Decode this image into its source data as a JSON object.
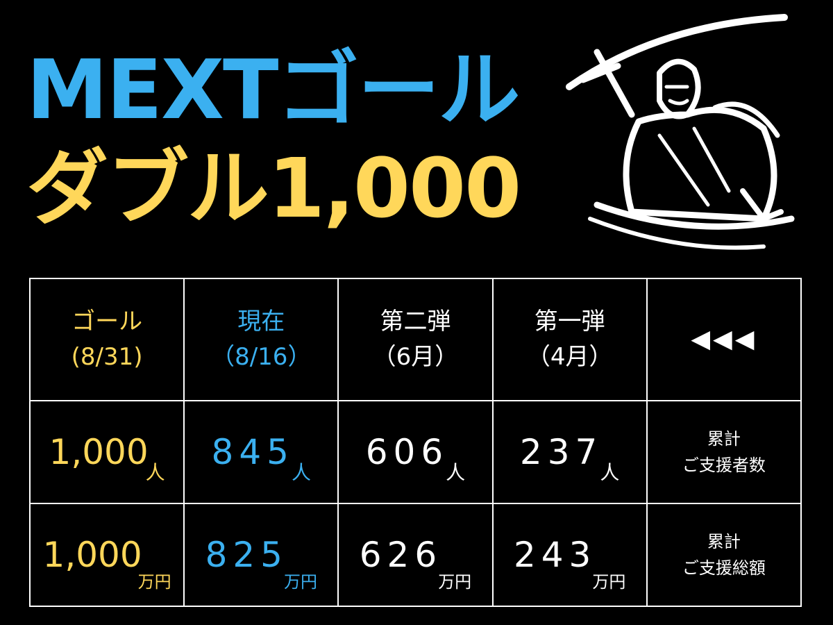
{
  "title": {
    "line1": "MEXTゴール",
    "line2": "ダブル1,000"
  },
  "colors": {
    "goal": "#FFD75A",
    "current": "#3BB0F0",
    "text": "#FFFFFF",
    "background": "#000000"
  },
  "illustration": "samurai-with-sword",
  "table": {
    "headers": [
      {
        "line1": "ゴール",
        "line2": "(8/31)"
      },
      {
        "line1": "現在",
        "line2": "（8/16）"
      },
      {
        "line1": "第二弾",
        "line2": "（6月）"
      },
      {
        "line1": "第一弾",
        "line2": "（4月）"
      },
      {
        "icon": "triple-left-arrow-icon",
        "text": "◀◀◀"
      }
    ],
    "rows": [
      {
        "values": [
          "1,000",
          "845",
          "606",
          "237"
        ],
        "unit": "人",
        "label1": "累計",
        "label2": "ご支援者数"
      },
      {
        "values": [
          "1,000",
          "825",
          "626",
          "243"
        ],
        "unit": "万円",
        "label1": "累計",
        "label2": "ご支援総額"
      }
    ]
  }
}
